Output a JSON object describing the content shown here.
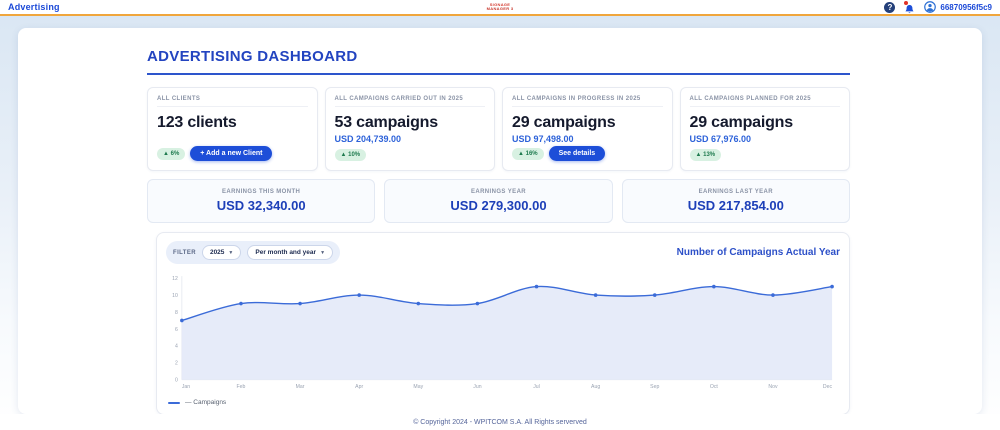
{
  "header": {
    "brand": "Advertising",
    "logo_line1": "SIGNAGE",
    "logo_line2": "MANAGER 3",
    "user_id": "66870956f5c9"
  },
  "page": {
    "title": "ADVERTISING DASHBOARD",
    "footer": "© Copyright 2024 - WPITCOM S.A. All Rights serverved"
  },
  "stat_cards": [
    {
      "label": "ALL CLIENTS",
      "value": "123 clients",
      "amount": "",
      "badge": "▲ 6%",
      "button": "+ Add a new Client"
    },
    {
      "label": "ALL CAMPAIGNS CARRIED OUT IN 2025",
      "value": "53 campaigns",
      "amount": "USD 204,739.00",
      "badge": "▲ 10%",
      "button": ""
    },
    {
      "label": "ALL CAMPAIGNS IN PROGRESS IN 2025",
      "value": "29 campaigns",
      "amount": "USD 97,498.00",
      "badge": "▲ 16%",
      "button": "See details"
    },
    {
      "label": "ALL CAMPAIGNS PLANNED FOR 2025",
      "value": "29 campaigns",
      "amount": "USD 67,976.00",
      "badge": "▲ 13%",
      "button": ""
    }
  ],
  "earnings_cards": [
    {
      "label": "EARNINGS THIS MONTH",
      "value": "USD 32,340.00"
    },
    {
      "label": "EARNINGS YEAR",
      "value": "USD 279,300.00"
    },
    {
      "label": "EARNINGS LAST YEAR",
      "value": "USD 217,854.00"
    }
  ],
  "filter": {
    "label": "FILTER",
    "year": "2025",
    "period": "Per month and year"
  },
  "chart_data": {
    "type": "area",
    "title": "Number of Campaigns Actual Year",
    "x": [
      "Jan",
      "Feb",
      "Mar",
      "Apr",
      "May",
      "Jun",
      "Jul",
      "Aug",
      "Sep",
      "Oct",
      "Nov",
      "Dec"
    ],
    "series": [
      {
        "name": "Campaigns",
        "values": [
          7,
          9,
          9,
          10,
          9,
          9,
          11,
          10,
          10,
          11,
          10,
          11
        ]
      }
    ],
    "ylim": [
      0,
      12
    ],
    "yticks": [
      0,
      2,
      4,
      6,
      8,
      10,
      12
    ],
    "legend": "— Campaigns",
    "grid": false,
    "legend_position": "bottom-left"
  },
  "colors": {
    "accent_blue": "#1d4ed8",
    "title_blue": "#2344c0",
    "money_blue": "#2d62d9",
    "badge_green_bg": "#d8f1e2",
    "badge_green_text": "#1e7a4e",
    "line_color": "#3b6bd8",
    "fill_color": "#e3e9f8",
    "topbar_border": "#f0a63c"
  }
}
